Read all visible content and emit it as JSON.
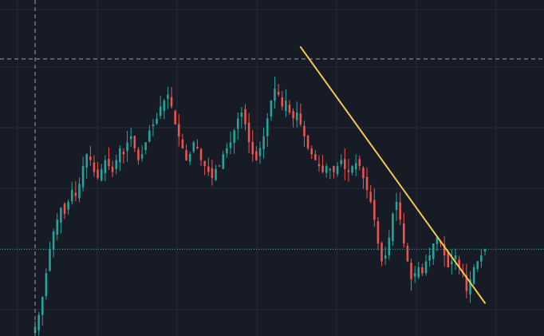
{
  "colors": {
    "background": "#171b26",
    "grid": "#262b38",
    "bull": "#26a69a",
    "bear": "#ef5350",
    "trendline": "#f2c94c",
    "crosshair": "#9aa0ac",
    "price_line": "#26a69a"
  },
  "chart_data": {
    "type": "candlestick",
    "title": "",
    "xlabel": "",
    "ylabel": "",
    "x": [
      0,
      122
    ],
    "ylim": [
      0,
      100
    ],
    "grid": true,
    "legend": "none",
    "price_scale": "hidden",
    "close_series": [
      2,
      6,
      12,
      20,
      28,
      34,
      38,
      42,
      40,
      44,
      48,
      46,
      50,
      56,
      60,
      58,
      54,
      52,
      55,
      58,
      56,
      54,
      58,
      62,
      60,
      64,
      66,
      62,
      58,
      60,
      64,
      68,
      70,
      72,
      76,
      78,
      80,
      76,
      70,
      66,
      62,
      58,
      60,
      64,
      62,
      58,
      56,
      54,
      52,
      55,
      56,
      60,
      62,
      64,
      68,
      72,
      74,
      70,
      64,
      60,
      58,
      62,
      66,
      72,
      78,
      82,
      80,
      76,
      78,
      74,
      72,
      74,
      70,
      66,
      62,
      60,
      58,
      56,
      54,
      56,
      55,
      54,
      56,
      58,
      55,
      54,
      56,
      57,
      56,
      52,
      48,
      44,
      38,
      30,
      24,
      26,
      32,
      40,
      44,
      38,
      30,
      24,
      18,
      20,
      22,
      20,
      24,
      26,
      30,
      32,
      30,
      26,
      22,
      24,
      26,
      22,
      20,
      14,
      18,
      22,
      24,
      26,
      28
    ],
    "high_point": {
      "x": 72,
      "y": 96
    },
    "trendline": {
      "start": {
        "x": 72,
        "y": 96
      },
      "end": {
        "x": 122,
        "y": 10
      }
    },
    "last_price": 28,
    "crosshair": {
      "x": 0,
      "y": 92
    }
  }
}
